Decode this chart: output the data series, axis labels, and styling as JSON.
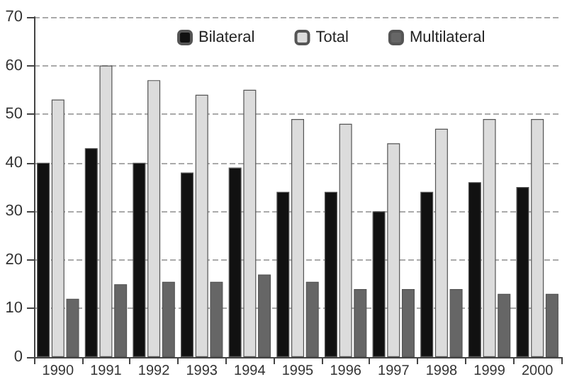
{
  "chart_data": {
    "type": "bar",
    "categories": [
      "1990",
      "1991",
      "1992",
      "1993",
      "1994",
      "1995",
      "1996",
      "1997",
      "1998",
      "1999",
      "2000"
    ],
    "series": [
      {
        "name": "Bilateral",
        "color": "#111111",
        "values": [
          40,
          43,
          40,
          38,
          39,
          34,
          34,
          30,
          34,
          36,
          35
        ]
      },
      {
        "name": "Total",
        "color": "#dcdcdc",
        "values": [
          53,
          60,
          57,
          54,
          55,
          49,
          48,
          44,
          47,
          49,
          49
        ]
      },
      {
        "name": "Multilateral",
        "color": "#666666",
        "values": [
          12,
          15,
          15.5,
          15.5,
          17,
          15.5,
          14,
          14,
          14,
          13,
          13
        ]
      }
    ],
    "ylim": [
      0,
      70
    ],
    "yticks": [
      0,
      10,
      20,
      30,
      40,
      50,
      60,
      70
    ],
    "grid": "y",
    "legend": "top"
  }
}
